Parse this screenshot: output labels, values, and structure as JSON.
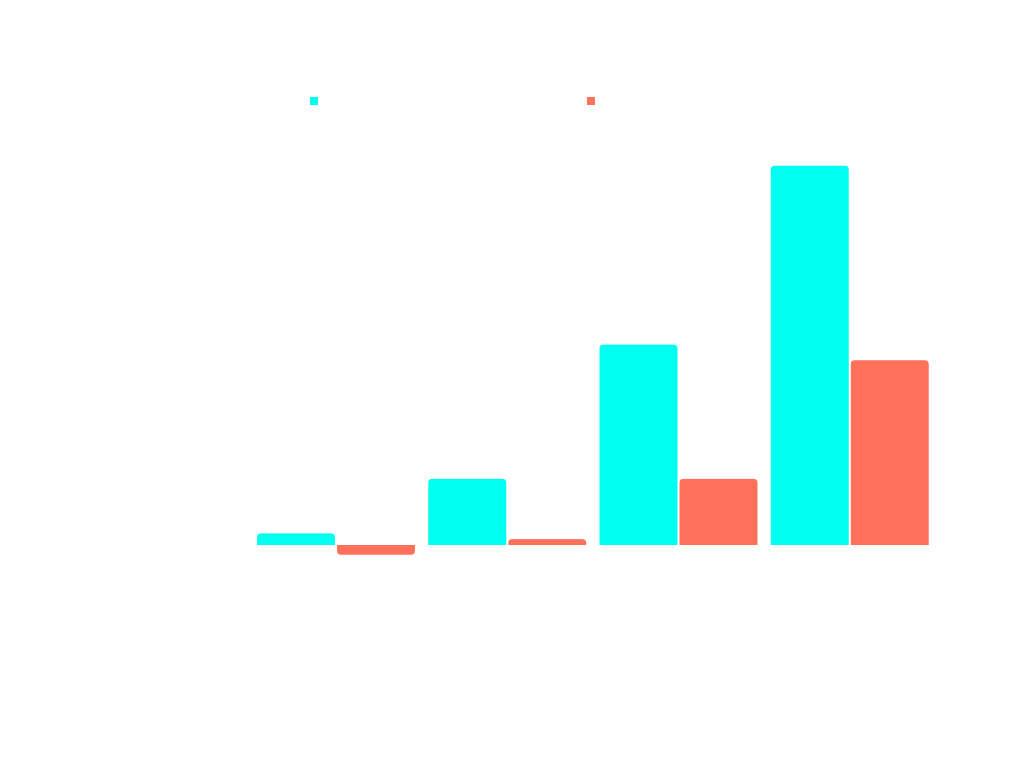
{
  "chart_data": {
    "type": "bar",
    "categories": [
      "",
      "",
      "",
      ""
    ],
    "series": [
      {
        "name": "",
        "color": "#00FFF0",
        "values": [
          0.6,
          3.4,
          10.3,
          19.5
        ]
      },
      {
        "name": "",
        "color": "#FF715B",
        "values": [
          -0.5,
          0.3,
          3.4,
          9.5
        ]
      }
    ],
    "ylim": [
      -1,
      20
    ],
    "grid": false,
    "legend": "top"
  }
}
